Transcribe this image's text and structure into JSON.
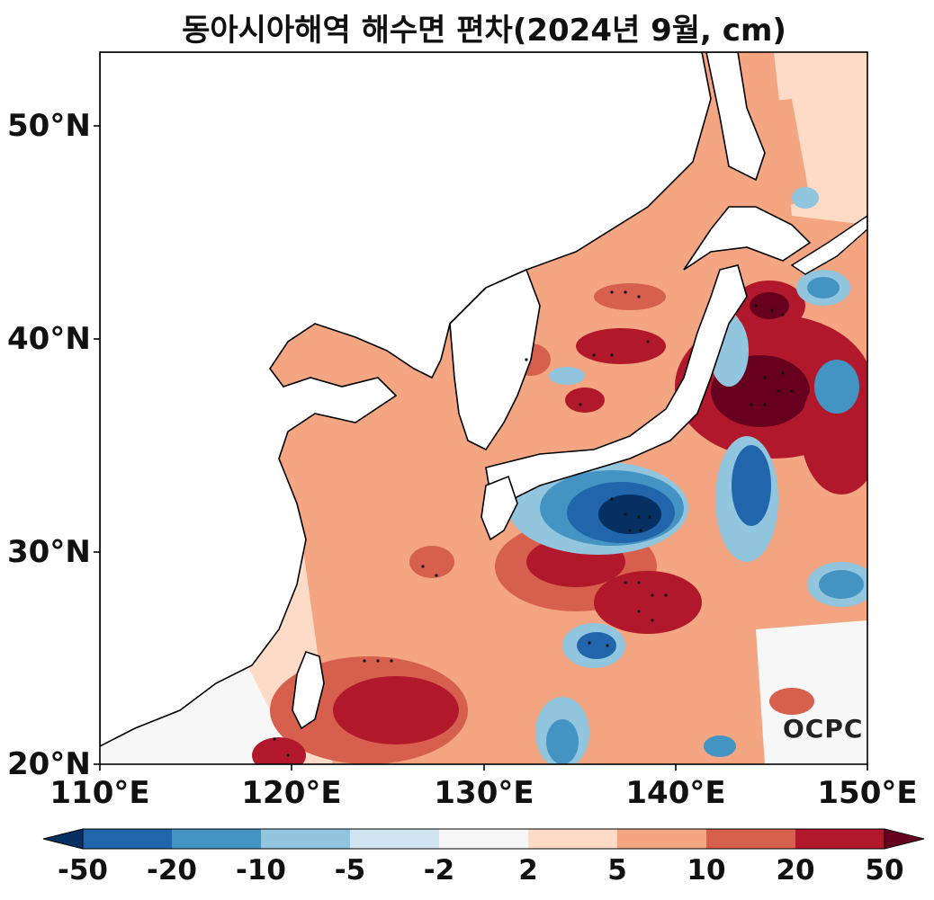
{
  "title": "동아시아해역 해수면 편차(2024년 9월, cm)",
  "logo": "OCPC",
  "y_axis": {
    "ticks": [
      "50°N",
      "40°N",
      "30°N",
      "20°N"
    ],
    "range_deg": [
      20,
      53.5
    ]
  },
  "x_axis": {
    "ticks": [
      "110°E",
      "120°E",
      "130°E",
      "140°E",
      "150°E"
    ],
    "range_deg": [
      110,
      150
    ]
  },
  "colorbar": {
    "tick_labels": [
      "-50",
      "-20",
      "-10",
      "-5",
      "-2",
      "2",
      "5",
      "10",
      "20",
      "50"
    ],
    "colors": [
      "#053061",
      "#2166ac",
      "#4393c3",
      "#92c5de",
      "#d1e5f0",
      "#f7f7f7",
      "#fddbc7",
      "#f4a582",
      "#d6604d",
      "#b2182b",
      "#67001f"
    ]
  },
  "chart_data": {
    "type": "heatmap",
    "variable": "sea level anomaly",
    "unit": "cm",
    "levels": [
      -50,
      -20,
      -10,
      -5,
      -2,
      2,
      5,
      10,
      20,
      50
    ],
    "features": [
      {
        "label": "strong negative",
        "lon": 137.3,
        "lat": 31.6,
        "value": -50
      },
      {
        "label": "negative",
        "lon": 144.2,
        "lat": 33.0,
        "value": -20
      },
      {
        "label": "strong positive",
        "lon": 144.5,
        "lat": 37.5,
        "value": 50
      },
      {
        "label": "strong positive",
        "lon": 145.3,
        "lat": 41.5,
        "value": 50
      },
      {
        "label": "negative",
        "lon": 136.3,
        "lat": 25.6,
        "value": -20
      },
      {
        "label": "negative",
        "lon": 147.7,
        "lat": 28.8,
        "value": -20
      },
      {
        "label": "positive",
        "lon": 138.0,
        "lat": 28.0,
        "value": 20
      },
      {
        "label": "positive",
        "lon": 124.8,
        "lat": 23.0,
        "value": 20
      }
    ]
  }
}
